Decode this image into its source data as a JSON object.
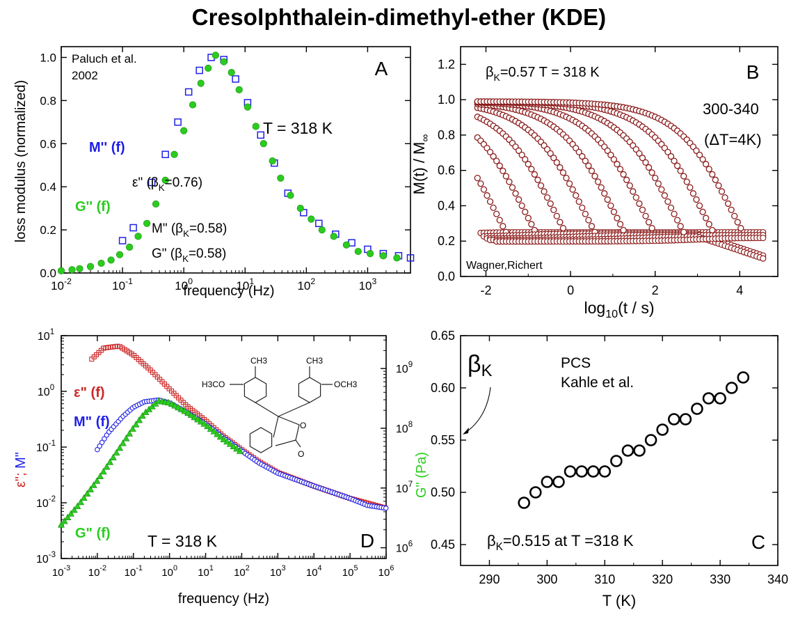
{
  "title": "Cresolphthalein-dimethyl-ether (KDE)",
  "colors": {
    "blue": "#1f1fe6",
    "green": "#2bcc1f",
    "red": "#cc2626",
    "darkred": "#8b1a1a",
    "black": "#000000"
  },
  "chart_data": [
    {
      "panel": "A",
      "type": "scatter",
      "x_scale": "log",
      "xlabel": "frequency  (Hz)",
      "ylabel": "loss modulus (normalized)",
      "xlim": [
        0.01,
        5000
      ],
      "ylim": [
        0,
        1.05
      ],
      "x_ticks": [
        0.01,
        0.1,
        1,
        10,
        100,
        1000
      ],
      "x_tick_labels": [
        "10-2",
        "10-1",
        "100",
        "101",
        "102",
        "103"
      ],
      "y_ticks": [
        0.0,
        0.2,
        0.4,
        0.6,
        0.8,
        1.0
      ],
      "y_tick_labels": [
        "0.0",
        "0.2",
        "0.4",
        "0.6",
        "0.8",
        "1.0"
      ],
      "annotations": {
        "ref1": "Paluch et al.",
        "ref2": "2002",
        "panel": "A",
        "temp": "T = 318 K",
        "m_label": "M'' (f)",
        "g_label": "G'' (f)",
        "eps_beta": "ε\" (βK=0.76)",
        "m_beta": "M\" (βK=0.58)",
        "g_beta": "G\" (βK=0.58)"
      },
      "series": [
        {
          "name": "M'' (f)",
          "marker": "open-square",
          "color": "blue",
          "points": [
            [
              0.1,
              0.15
            ],
            [
              0.15,
              0.21
            ],
            [
              0.3,
              0.42
            ],
            [
              0.5,
              0.55
            ],
            [
              0.8,
              0.7
            ],
            [
              1.2,
              0.84
            ],
            [
              1.8,
              0.94
            ],
            [
              2.8,
              1.0
            ],
            [
              4.5,
              0.99
            ],
            [
              7,
              0.9
            ],
            [
              11,
              0.79
            ],
            [
              18,
              0.64
            ],
            [
              30,
              0.51
            ],
            [
              50,
              0.37
            ],
            [
              90,
              0.28
            ],
            [
              160,
              0.23
            ],
            [
              300,
              0.18
            ],
            [
              550,
              0.14
            ],
            [
              1000,
              0.11
            ],
            [
              1800,
              0.09
            ],
            [
              3200,
              0.08
            ],
            [
              5000,
              0.07
            ]
          ]
        },
        {
          "name": "G'' (f)",
          "marker": "filled-circle",
          "color": "green",
          "points": [
            [
              0.01,
              0.01
            ],
            [
              0.015,
              0.015
            ],
            [
              0.02,
              0.02
            ],
            [
              0.03,
              0.03
            ],
            [
              0.045,
              0.045
            ],
            [
              0.065,
              0.06
            ],
            [
              0.09,
              0.085
            ],
            [
              0.13,
              0.12
            ],
            [
              0.18,
              0.17
            ],
            [
              0.25,
              0.23
            ],
            [
              0.35,
              0.32
            ],
            [
              0.5,
              0.43
            ],
            [
              0.7,
              0.55
            ],
            [
              1.0,
              0.66
            ],
            [
              1.4,
              0.78
            ],
            [
              1.9,
              0.88
            ],
            [
              2.5,
              0.95
            ],
            [
              3.3,
              1.01
            ],
            [
              4.5,
              0.98
            ],
            [
              6,
              0.93
            ],
            [
              8,
              0.85
            ],
            [
              11,
              0.77
            ],
            [
              15,
              0.68
            ],
            [
              20,
              0.6
            ],
            [
              28,
              0.52
            ],
            [
              38,
              0.44
            ],
            [
              55,
              0.36
            ],
            [
              80,
              0.3
            ],
            [
              120,
              0.25
            ],
            [
              180,
              0.2
            ],
            [
              280,
              0.17
            ],
            [
              450,
              0.13
            ],
            [
              700,
              0.1
            ],
            [
              1100,
              0.09
            ],
            [
              1800,
              0.08
            ],
            [
              3000,
              0.07
            ]
          ]
        }
      ]
    },
    {
      "panel": "B",
      "type": "scatter",
      "xlabel": "log10(t / s)",
      "ylabel": "M(t) / M∞",
      "xlim": [
        -2.6,
        4.9
      ],
      "ylim": [
        0,
        1.3
      ],
      "x_ticks": [
        -2,
        0,
        2,
        4
      ],
      "x_tick_labels": [
        "-2",
        "0",
        "2",
        "4"
      ],
      "y_ticks": [
        0.0,
        0.2,
        0.4,
        0.6,
        0.8,
        1.0,
        1.2
      ],
      "y_tick_labels": [
        "0.0",
        "0.2",
        "0.4",
        "0.6",
        "0.8",
        "1.0",
        "1.2"
      ],
      "annotations": {
        "beta": "βK=0.57 T = 318 K",
        "panel": "B",
        "range": "300-340",
        "delta": "(ΔT=4K)",
        "ref": "Wagner,Richert"
      },
      "curve_midpoints_log10t": [
        -2.5,
        -1.8,
        -1.1,
        -0.4,
        0.3,
        1.0,
        1.7,
        2.4,
        3.1,
        3.8
      ],
      "stretching_exponent": 0.57,
      "lower_plateau": 0.23,
      "upper_plateau": 0.99,
      "marker": "open-circle",
      "color": "darkred"
    },
    {
      "panel": "D",
      "type": "scatter",
      "x_scale": "log",
      "y_scale": "log",
      "xlabel": "frequency (Hz)",
      "ylabel_left": "ε\"; M\"",
      "ylabel_right": "G\" (Pa)",
      "xlim": [
        0.001,
        1000000
      ],
      "ylim": [
        0.001,
        10
      ],
      "ylim_right": [
        1000000,
        3000000000
      ],
      "x_tick_labels": [
        "10-3",
        "10-2",
        "10-1",
        "100",
        "101",
        "102",
        "103",
        "104",
        "105",
        "106"
      ],
      "y_tick_labels": [
        "10-3",
        "10-2",
        "10-1",
        "100",
        "101"
      ],
      "y_right_tick_labels": [
        "106",
        "107",
        "108",
        "109"
      ],
      "annotations": {
        "eps_label": "ε\" (f)",
        "m_label": "M\" (f)",
        "g_label": "G\" (f)",
        "temp": "T = 318 K",
        "panel": "D",
        "mol_h3co": "H3CO",
        "mol_ch3a": "CH3",
        "mol_ch3b": "CH3",
        "mol_och3": "OCH3",
        "mol_o1": "O",
        "mol_o2": "O"
      },
      "series": [
        {
          "name": "ε\" (f)",
          "marker": "open-square",
          "color": "red",
          "points": [
            [
              0.007,
              3.8
            ],
            [
              0.015,
              6.0
            ],
            [
              0.04,
              6.5
            ],
            [
              0.1,
              4.5
            ],
            [
              0.3,
              2.4
            ],
            [
              1,
              1.1
            ],
            [
              3,
              0.55
            ],
            [
              10,
              0.3
            ],
            [
              30,
              0.16
            ],
            [
              100,
              0.09
            ],
            [
              300,
              0.055
            ],
            [
              1000,
              0.035
            ],
            [
              10000,
              0.02
            ],
            [
              100000,
              0.012
            ],
            [
              1000000,
              0.008
            ]
          ]
        },
        {
          "name": "M\" (f)",
          "marker": "open-circle",
          "color": "blue",
          "points": [
            [
              0.01,
              0.09
            ],
            [
              0.02,
              0.18
            ],
            [
              0.05,
              0.35
            ],
            [
              0.1,
              0.52
            ],
            [
              0.2,
              0.65
            ],
            [
              0.5,
              0.7
            ],
            [
              1,
              0.62
            ],
            [
              3,
              0.42
            ],
            [
              10,
              0.26
            ],
            [
              30,
              0.15
            ],
            [
              100,
              0.085
            ],
            [
              300,
              0.052
            ],
            [
              1000,
              0.034
            ],
            [
              10000,
              0.02
            ],
            [
              100000,
              0.012
            ],
            [
              300000,
              0.009
            ],
            [
              1000000,
              0.008
            ]
          ]
        },
        {
          "name": "G\" (f)",
          "marker": "filled-triangle",
          "color": "green",
          "points": [
            [
              0.001,
              0.004
            ],
            [
              0.003,
              0.009
            ],
            [
              0.01,
              0.025
            ],
            [
              0.03,
              0.07
            ],
            [
              0.1,
              0.22
            ],
            [
              0.2,
              0.4
            ],
            [
              0.5,
              0.67
            ],
            [
              1,
              0.62
            ],
            [
              3,
              0.42
            ],
            [
              10,
              0.25
            ],
            [
              30,
              0.14
            ],
            [
              100,
              0.08
            ]
          ]
        }
      ]
    },
    {
      "panel": "C",
      "type": "scatter",
      "xlabel": "T (K)",
      "ylabel": "",
      "xlim": [
        285,
        340
      ],
      "ylim": [
        0.43,
        0.65
      ],
      "x_ticks": [
        290,
        300,
        310,
        320,
        330,
        340
      ],
      "y_ticks": [
        0.45,
        0.5,
        0.55,
        0.6,
        0.65
      ],
      "y_tick_labels": [
        "0.45",
        "0.50",
        "0.55",
        "0.60",
        "0.65"
      ],
      "annotations": {
        "beta_sym": "βK",
        "method": "PCS",
        "ref": "Kahle et al.",
        "value": "βK=0.515 at T =318 K",
        "panel": "C"
      },
      "marker": "open-circle",
      "color": "black",
      "x": [
        296,
        298,
        300,
        302,
        304,
        306,
        308,
        310,
        312,
        314,
        316,
        318,
        320,
        322,
        324,
        326,
        328,
        330,
        332,
        334
      ],
      "y": [
        0.49,
        0.5,
        0.51,
        0.51,
        0.52,
        0.52,
        0.52,
        0.52,
        0.53,
        0.54,
        0.54,
        0.55,
        0.56,
        0.57,
        0.57,
        0.58,
        0.59,
        0.59,
        0.6,
        0.61
      ]
    }
  ]
}
